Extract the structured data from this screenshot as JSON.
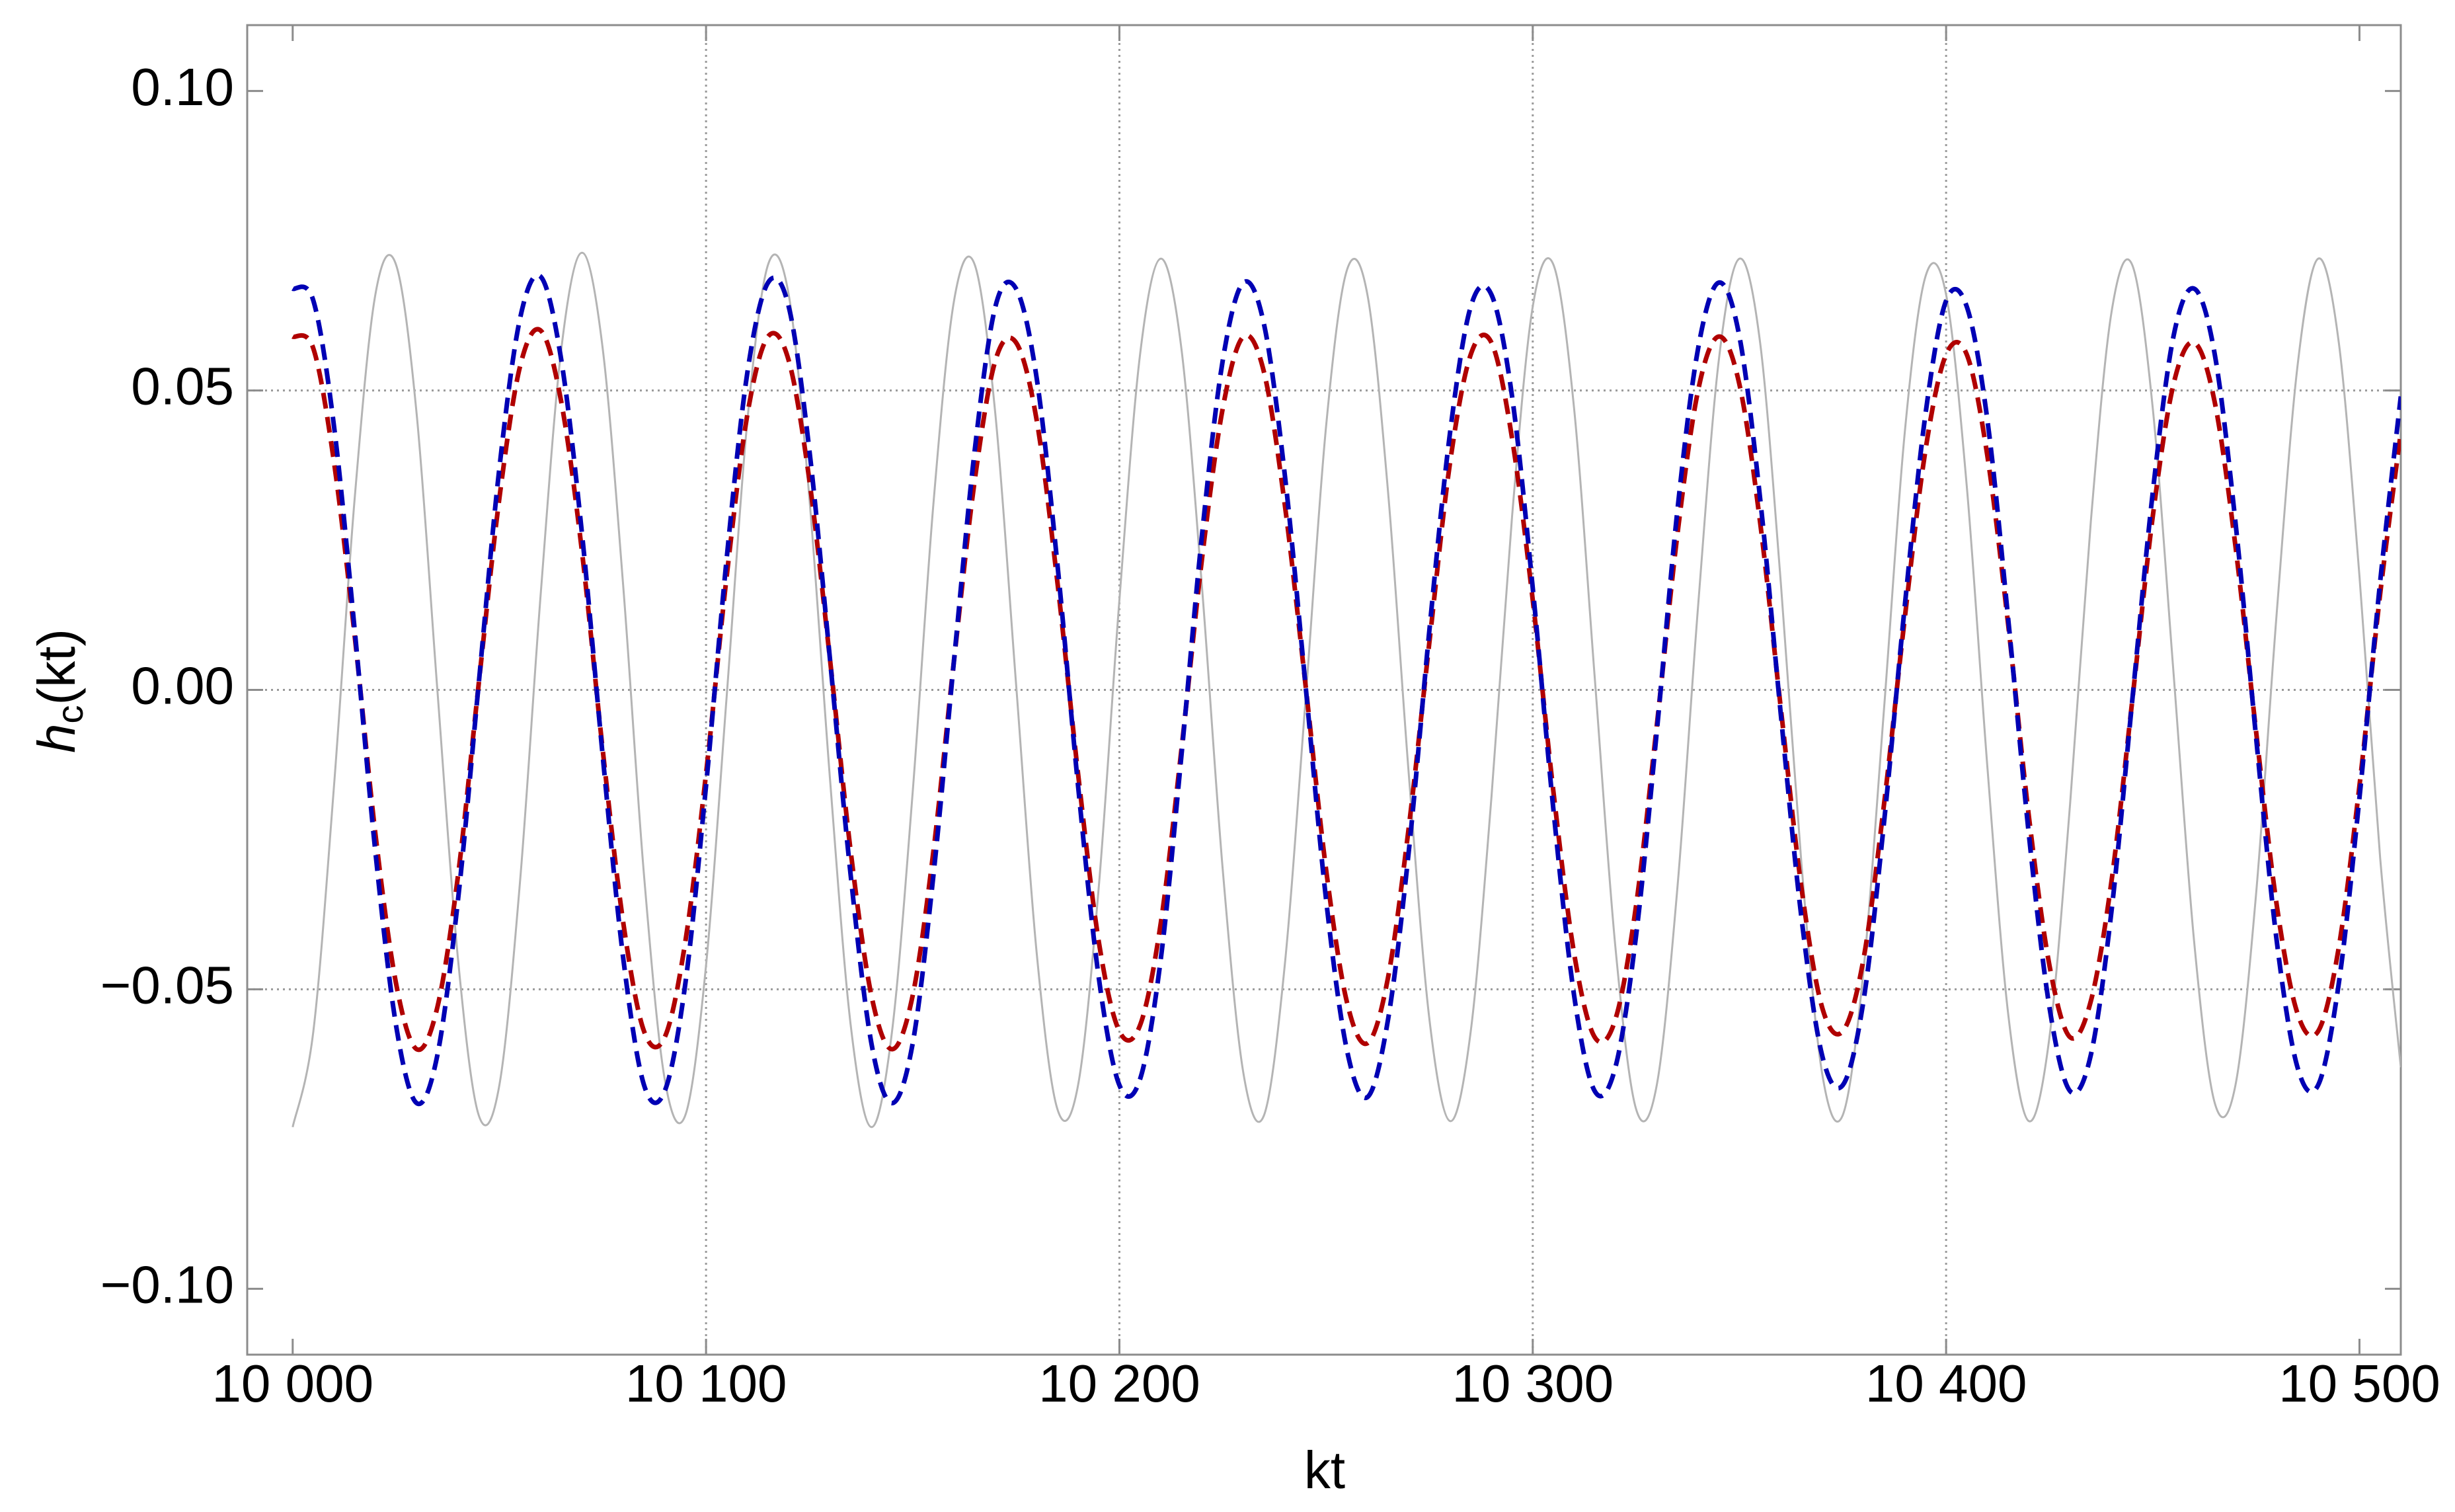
{
  "chart_data": {
    "type": "line",
    "xlabel": "kt",
    "ylabel": {
      "symbol": "h",
      "subscript": "c",
      "argument": "(kt)"
    },
    "x": [
      10000,
      10005,
      10010,
      10015,
      10020,
      10025,
      10030,
      10035,
      10040,
      10045,
      10050,
      10055,
      10060,
      10065,
      10070,
      10075,
      10080,
      10085,
      10090,
      10095,
      10100,
      10105,
      10110,
      10115,
      10120,
      10125,
      10130,
      10135,
      10140,
      10145,
      10150,
      10155,
      10160,
      10165,
      10170,
      10175,
      10180,
      10185,
      10190,
      10195,
      10200,
      10205,
      10210,
      10215,
      10220,
      10225,
      10230,
      10235,
      10240,
      10245,
      10250,
      10255,
      10260,
      10265,
      10270,
      10275,
      10280,
      10285,
      10290,
      10295,
      10300,
      10305,
      10310,
      10315,
      10320,
      10325,
      10330,
      10335,
      10340,
      10345,
      10350,
      10355,
      10360,
      10365,
      10370,
      10375,
      10380,
      10385,
      10390,
      10395,
      10400,
      10405,
      10410,
      10415,
      10420,
      10425,
      10430,
      10435,
      10440,
      10445,
      10450,
      10455,
      10460,
      10465,
      10470,
      10475,
      10480,
      10485,
      10490,
      10495,
      10500,
      10505,
      10510
    ],
    "series": [
      {
        "color": "#b4b4b4",
        "dashed": false,
        "values": [
          -0.073,
          -0.057,
          -0.016,
          0.032,
          0.066,
          0.071,
          0.046,
          0.0,
          -0.045,
          -0.071,
          -0.066,
          -0.032,
          0.016,
          0.057,
          0.073,
          0.057,
          0.017,
          -0.031,
          -0.065,
          -0.071,
          -0.046,
          -0.001,
          0.045,
          0.071,
          0.066,
          0.032,
          -0.015,
          -0.056,
          -0.073,
          -0.057,
          -0.017,
          0.031,
          0.065,
          0.071,
          0.046,
          0.001,
          -0.044,
          -0.07,
          -0.066,
          -0.033,
          0.015,
          0.056,
          0.072,
          0.057,
          0.017,
          -0.03,
          -0.064,
          -0.071,
          -0.046,
          -0.002,
          0.044,
          0.07,
          0.066,
          0.033,
          -0.014,
          -0.055,
          -0.072,
          -0.057,
          -0.018,
          0.029,
          0.064,
          0.071,
          0.047,
          0.002,
          -0.043,
          -0.07,
          -0.066,
          -0.033,
          0.014,
          0.055,
          0.072,
          0.058,
          0.018,
          -0.029,
          -0.064,
          -0.071,
          -0.047,
          -0.003,
          0.043,
          0.069,
          0.066,
          0.034,
          -0.013,
          -0.054,
          -0.072,
          -0.058,
          -0.019,
          0.028,
          0.063,
          0.071,
          0.047,
          0.003,
          -0.042,
          -0.069,
          -0.066,
          -0.034,
          0.013,
          0.054,
          0.072,
          0.058,
          0.019,
          -0.028,
          -0.063
        ]
      },
      {
        "color": "#b00000",
        "dashed": true,
        "values": [
          0.059,
          0.057,
          0.038,
          0.009,
          -0.024,
          -0.049,
          -0.06,
          -0.053,
          -0.031,
          0.001,
          0.032,
          0.054,
          0.06,
          0.048,
          0.023,
          -0.01,
          -0.039,
          -0.057,
          -0.058,
          -0.042,
          -0.014,
          0.019,
          0.046,
          0.059,
          0.055,
          0.035,
          0.005,
          -0.027,
          -0.051,
          -0.06,
          -0.051,
          -0.027,
          0.005,
          0.035,
          0.055,
          0.058,
          0.045,
          0.018,
          -0.014,
          -0.042,
          -0.057,
          -0.056,
          -0.039,
          -0.01,
          0.022,
          0.047,
          0.059,
          0.053,
          0.031,
          0.001,
          -0.03,
          -0.052,
          -0.059,
          -0.048,
          -0.023,
          0.008,
          0.038,
          0.056,
          0.058,
          0.042,
          0.015,
          -0.017,
          -0.044,
          -0.058,
          -0.055,
          -0.036,
          -0.006,
          0.026,
          0.05,
          0.059,
          0.051,
          0.028,
          -0.003,
          -0.033,
          -0.053,
          -0.057,
          -0.045,
          -0.019,
          0.012,
          0.04,
          0.056,
          0.056,
          0.039,
          0.011,
          -0.021,
          -0.046,
          -0.058,
          -0.052,
          -0.032,
          -0.002,
          0.029,
          0.051,
          0.058,
          0.048,
          0.024,
          -0.007,
          -0.036,
          -0.054,
          -0.057,
          -0.043,
          -0.016,
          0.016,
          0.043
        ]
      },
      {
        "color": "#0000b4",
        "dashed": true,
        "values": [
          0.067,
          0.065,
          0.044,
          0.01,
          -0.027,
          -0.056,
          -0.069,
          -0.061,
          -0.035,
          0.001,
          0.037,
          0.062,
          0.069,
          0.055,
          0.026,
          -0.011,
          -0.045,
          -0.066,
          -0.067,
          -0.049,
          -0.016,
          0.022,
          0.053,
          0.068,
          0.064,
          0.04,
          0.005,
          -0.031,
          -0.059,
          -0.069,
          -0.059,
          -0.031,
          0.005,
          0.04,
          0.064,
          0.067,
          0.052,
          0.021,
          -0.016,
          -0.048,
          -0.066,
          -0.065,
          -0.045,
          -0.011,
          0.026,
          0.055,
          0.068,
          0.061,
          0.036,
          0.001,
          -0.035,
          -0.06,
          -0.068,
          -0.055,
          -0.027,
          0.01,
          0.043,
          0.064,
          0.066,
          0.049,
          0.017,
          -0.02,
          -0.051,
          -0.067,
          -0.063,
          -0.041,
          -0.007,
          0.03,
          0.057,
          0.068,
          0.059,
          0.032,
          -0.004,
          -0.038,
          -0.061,
          -0.066,
          -0.052,
          -0.022,
          0.014,
          0.046,
          0.065,
          0.064,
          0.045,
          0.012,
          -0.024,
          -0.053,
          -0.067,
          -0.061,
          -0.037,
          -0.002,
          0.033,
          0.059,
          0.067,
          0.056,
          0.028,
          -0.008,
          -0.042,
          -0.063,
          -0.066,
          -0.049,
          -0.018,
          0.018,
          0.049
        ]
      }
    ],
    "xlim": [
      9989,
      10510
    ],
    "ylim": [
      -0.111,
      0.111
    ],
    "xticks": [
      {
        "value": 10000,
        "label": "10 000"
      },
      {
        "value": 10100,
        "label": "10 100"
      },
      {
        "value": 10200,
        "label": "10 200"
      },
      {
        "value": 10300,
        "label": "10 300"
      },
      {
        "value": 10400,
        "label": "10 400"
      },
      {
        "value": 10500,
        "label": "10 500"
      }
    ],
    "yticks": [
      {
        "value": -0.1,
        "label": "−0.10"
      },
      {
        "value": -0.05,
        "label": "−0.05"
      },
      {
        "value": 0,
        "label": "0.00"
      },
      {
        "value": 0.05,
        "label": "0.05"
      },
      {
        "value": 0.1,
        "label": "0.10"
      }
    ],
    "xgrid": [
      10100,
      10200,
      10300,
      10400
    ],
    "ygrid": [
      -0.05,
      0,
      0.05
    ]
  }
}
